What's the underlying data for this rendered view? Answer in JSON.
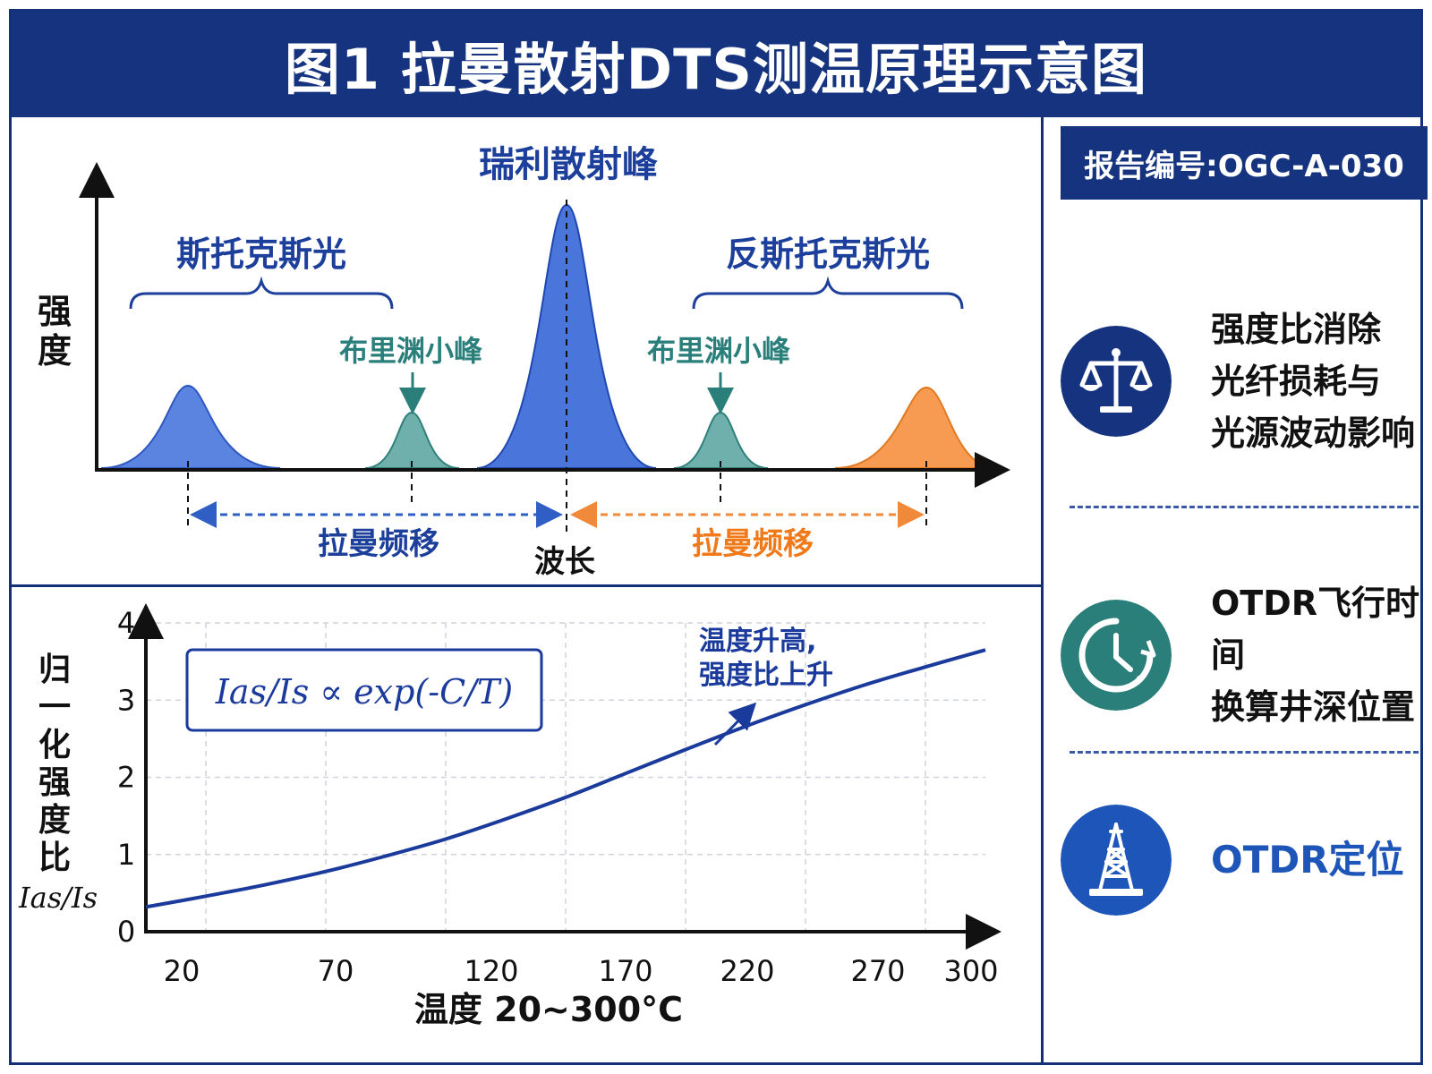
{
  "header": {
    "title": "图1 拉曼散射DTS测温原理示意图"
  },
  "spectrum": {
    "y_axis_label": "强度",
    "x_axis_label": "波长",
    "rayleigh_label": "瑞利散射峰",
    "stokes_label": "斯托克斯光",
    "anti_stokes_label": "反斯托克斯光",
    "brillouin_left_label": "布里渊小峰",
    "brillouin_right_label": "布里渊小峰",
    "raman_shift_left_label": "拉曼频移",
    "raman_shift_right_label": "拉曼频移",
    "colors": {
      "blue": "#3f6fd8",
      "teal": "#4f9a96",
      "orange": "#f08a3a",
      "label_blue": "#1c3f9b",
      "label_teal": "#2a7f7a"
    }
  },
  "chart_data": {
    "type": "line",
    "xlabel": "温度 20~300°C",
    "ylabel": "归一化强度比",
    "ylabel_symbol": "Ias/Is",
    "x_ticks": [
      "20",
      "70",
      "120",
      "170",
      "220",
      "270",
      "300"
    ],
    "y_ticks": [
      "0",
      "1",
      "2",
      "3",
      "4"
    ],
    "xlim": [
      20,
      300
    ],
    "ylim": [
      0,
      4
    ],
    "grid": true,
    "formula": "Ias/Is ∝ exp(-C/T)",
    "annotation": [
      "温度升高,",
      "强度比上升"
    ],
    "series": [
      {
        "x": [
          20,
          40,
          60,
          80,
          100,
          120,
          140,
          160,
          180,
          200,
          220,
          240,
          260,
          280,
          300
        ],
        "values": [
          0.32,
          0.46,
          0.61,
          0.78,
          0.98,
          1.2,
          1.46,
          1.74,
          2.05,
          2.36,
          2.66,
          2.94,
          3.2,
          3.43,
          3.65
        ]
      }
    ],
    "color": "#1a3a9c"
  },
  "sidebar": {
    "report_label": "报告编号:OGC-A-030",
    "items": [
      {
        "icon": "balance-scale-icon",
        "lines": [
          "强度比消除",
          "光纤损耗与",
          "光源波动影响"
        ],
        "color": "#15337f"
      },
      {
        "icon": "clock-icon",
        "lines": [
          "OTDR飞行时间",
          "换算井深位置"
        ],
        "color": "#2a7f7a"
      },
      {
        "icon": "oil-derrick-icon",
        "lines": [
          "OTDR定位"
        ],
        "color": "#1e55b8"
      }
    ]
  }
}
